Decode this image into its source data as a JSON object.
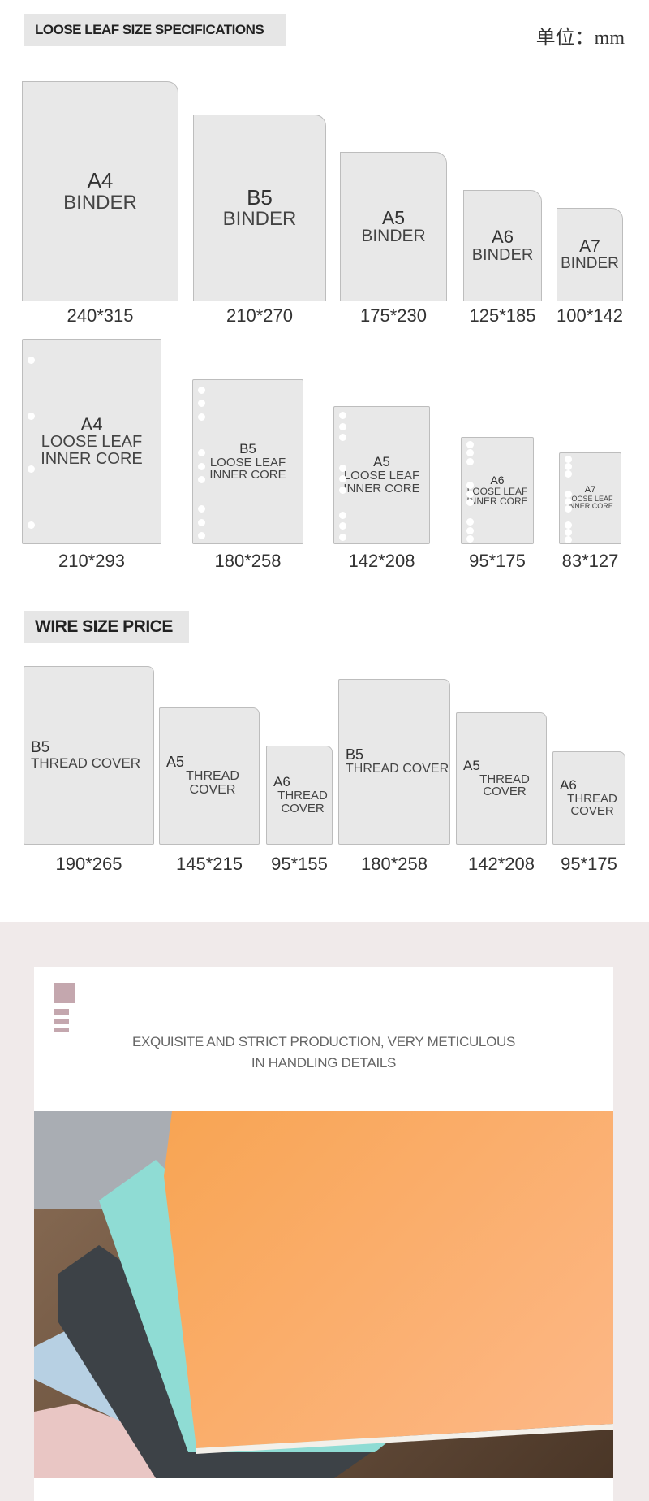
{
  "section1": {
    "title": "LOOSE LEAF SIZE SPECIFICATIONS",
    "unit": "单位：mm"
  },
  "binders": [
    {
      "size": "A4",
      "name": "BINDER",
      "dims": "240*315"
    },
    {
      "size": "B5",
      "name": "BINDER",
      "dims": "210*270"
    },
    {
      "size": "A5",
      "name": "BINDER",
      "dims": "175*230"
    },
    {
      "size": "A6",
      "name": "BINDER",
      "dims": "125*185"
    },
    {
      "size": "A7",
      "name": "BINDER",
      "dims": "100*142"
    }
  ],
  "inner_cores": [
    {
      "size": "A4",
      "name": "LOOSE LEAF INNER CORE",
      "dims": "210*293"
    },
    {
      "size": "B5",
      "name": "LOOSE LEAF INNER CORE",
      "dims": "180*258"
    },
    {
      "size": "A5",
      "name": "LOOSE LEAF INNER CORE",
      "dims": "142*208"
    },
    {
      "size": "A6",
      "name": "LOOSE LEAF INNER CORE",
      "dims": "95*175"
    },
    {
      "size": "A7",
      "name": "LOOSE LEAF INNER CORE",
      "dims": "83*127"
    }
  ],
  "section2": {
    "title": "WIRE SIZE PRICE"
  },
  "thread_covers": [
    {
      "size": "B5",
      "name": "THREAD COVER",
      "dims": "190*265"
    },
    {
      "size": "A5",
      "name": "THREAD COVER",
      "dims": "145*215"
    },
    {
      "size": "A6",
      "name": "THREAD COVER",
      "dims": "95*155"
    },
    {
      "size": "B5",
      "name": "THREAD COVER",
      "dims": "180*258"
    },
    {
      "size": "A5",
      "name": "THREAD COVER",
      "dims": "142*208"
    },
    {
      "size": "A6",
      "name": "THREAD COVER",
      "dims": "95*175"
    }
  ],
  "feature": {
    "line1": "EXQUISITE AND STRICT PRODUCTION, VERY METICULOUS",
    "line2": "IN HANDLING DETAILS",
    "accent": "#c4a7ae"
  }
}
